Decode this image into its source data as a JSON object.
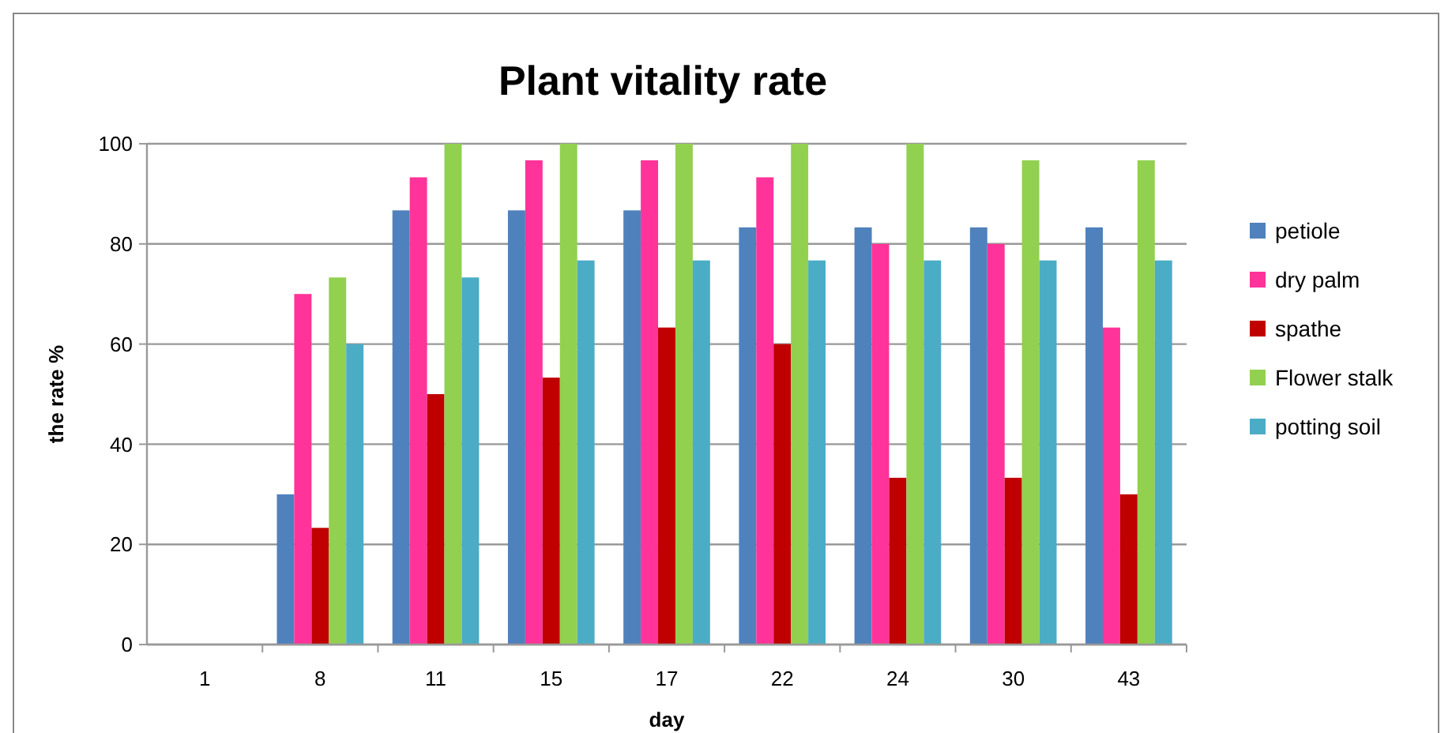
{
  "chart_data": {
    "type": "bar",
    "title": "Plant vitality rate",
    "xlabel": "day",
    "ylabel": "the rate %",
    "categories": [
      "1",
      "8",
      "11",
      "15",
      "17",
      "22",
      "24",
      "30",
      "43"
    ],
    "series": [
      {
        "name": "petiole",
        "color": "#4f81bd",
        "values": [
          0,
          30,
          86.7,
          86.7,
          86.7,
          83.3,
          83.3,
          83.3,
          83.3
        ]
      },
      {
        "name": "dry palm",
        "color": "#ff3399",
        "values": [
          0,
          70,
          93.3,
          96.7,
          96.7,
          93.3,
          80,
          80,
          63.3
        ]
      },
      {
        "name": "spathe",
        "color": "#c00000",
        "values": [
          0,
          23.3,
          50,
          53.3,
          63.3,
          60,
          33.3,
          33.3,
          30
        ]
      },
      {
        "name": "Flower stalk",
        "color": "#92d050",
        "values": [
          0,
          73.3,
          100,
          100,
          100,
          100,
          100,
          96.7,
          96.7
        ]
      },
      {
        "name": "potting soil",
        "color": "#4bacc6",
        "values": [
          0,
          60,
          73.3,
          76.7,
          76.7,
          76.7,
          76.7,
          76.7,
          76.7
        ]
      }
    ],
    "ylim": [
      0,
      100
    ],
    "yticks": [
      0,
      20,
      40,
      60,
      80,
      100
    ],
    "grid": "y",
    "legend": "right"
  }
}
